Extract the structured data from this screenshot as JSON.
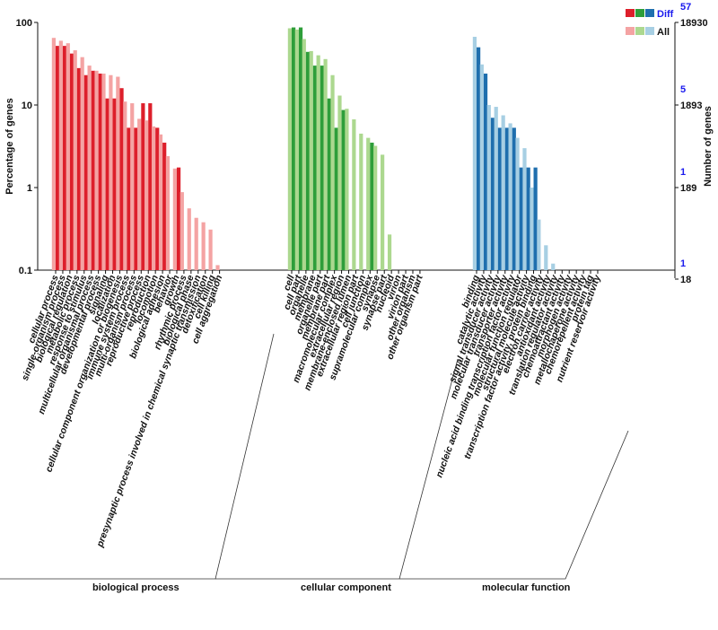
{
  "chart_data": {
    "type": "bar",
    "y_scale": "log",
    "ylim": [
      0.1,
      100
    ],
    "ylabel": "Percentage of genes",
    "y2label": "Number of genes",
    "yticks": [
      "0.1",
      "1",
      "10",
      "100"
    ],
    "y2_all_ticks": [
      "18",
      "189",
      "1893",
      "18930"
    ],
    "y2_diff_ticks": [
      "1",
      "1",
      "5",
      "57"
    ],
    "legend": {
      "diff_label": "Diff",
      "all_label": "All",
      "placement": "top-right"
    },
    "colors": {
      "bp_all": "#f4a3a3",
      "bp_diff": "#dd1f2b",
      "cc_all": "#acd88f",
      "cc_diff": "#2e9e3a",
      "mf_all": "#a7cfe3",
      "mf_diff": "#1f6fae",
      "diff_tick": "#1a1aee",
      "all_tick": "#111111"
    },
    "groups": [
      {
        "name": "biological process",
        "categories": [
          "cellular process",
          "single-organism process",
          "biological regulation",
          "metabolic process",
          "response to stimulus",
          "multicellular organismal process",
          "developmental process",
          "signaling",
          "localization",
          "cellular component organization or biogenesis",
          "immune system process",
          "multi-organism process",
          "reproductive process",
          "reproduction",
          "locomotion",
          "biological adhesion",
          "behavior",
          "growth",
          "rhythmic process",
          "biological phase",
          "presynaptic process involved in chemical synaptic transmission",
          "detoxification",
          "cell killing",
          "cell aggregation"
        ],
        "all": [
          65,
          60,
          56,
          46,
          38,
          30,
          26,
          24,
          23,
          22,
          11,
          10.5,
          6.8,
          6.5,
          5.5,
          4.4,
          2.4,
          1.7,
          0.88,
          0.56,
          0.43,
          0.38,
          0.31,
          0.115
        ],
        "diff": [
          52,
          52,
          42,
          28,
          23,
          26,
          24,
          12,
          12,
          16,
          5.3,
          5.3,
          10.5,
          10.5,
          5.3,
          3.5,
          null,
          1.75,
          null,
          null,
          null,
          null,
          null,
          null
        ]
      },
      {
        "name": "cellular component",
        "categories": [
          "cell",
          "cell part",
          "organelle",
          "membrane",
          "organelle part",
          "membrane part",
          "macromolecular complex",
          "extracellular region",
          "membrane-enclosed lumen",
          "extracellular region part",
          "cell junction",
          "supramolecular complex",
          "synapse",
          "synapse part",
          "nucleoid",
          "virion",
          "virion part",
          "other organism",
          "other organism part"
        ],
        "all": [
          85,
          82,
          63,
          45,
          40,
          36,
          23,
          13,
          9,
          6.7,
          4.5,
          4,
          3.2,
          2.5,
          0.27,
          null,
          null,
          null,
          null
        ],
        "diff": [
          87,
          87,
          44,
          30,
          30,
          12,
          5.3,
          8.7,
          null,
          null,
          null,
          3.5,
          null,
          null,
          null,
          null,
          null,
          null,
          null
        ]
      },
      {
        "name": "molecular function",
        "categories": [
          "binding",
          "catalytic activity",
          "signal transducer activity",
          "molecular transducer activity",
          "transporter activity",
          "nucleic acid binding transcription factor activity",
          "molecular function regulator",
          "structural molecule activity",
          "transcription factor activity, protein binding",
          "electron carrier activity",
          "antioxidant activity",
          "translation regulator activity",
          "chemoattractant activity",
          "morphogen activity",
          "metallochaperone activity",
          "chemorepellent activity",
          "protein tag",
          "nutrient reservoir activity"
        ],
        "all": [
          67,
          31,
          10,
          9.5,
          7.5,
          6,
          4,
          3,
          1,
          0.41,
          0.2,
          0.12,
          null,
          null,
          null,
          null,
          null,
          null
        ],
        "diff": [
          50,
          24,
          7,
          5.3,
          5.3,
          5.3,
          1.75,
          1.75,
          1.75,
          null,
          null,
          null,
          null,
          null,
          null,
          null,
          null,
          null
        ]
      }
    ]
  }
}
